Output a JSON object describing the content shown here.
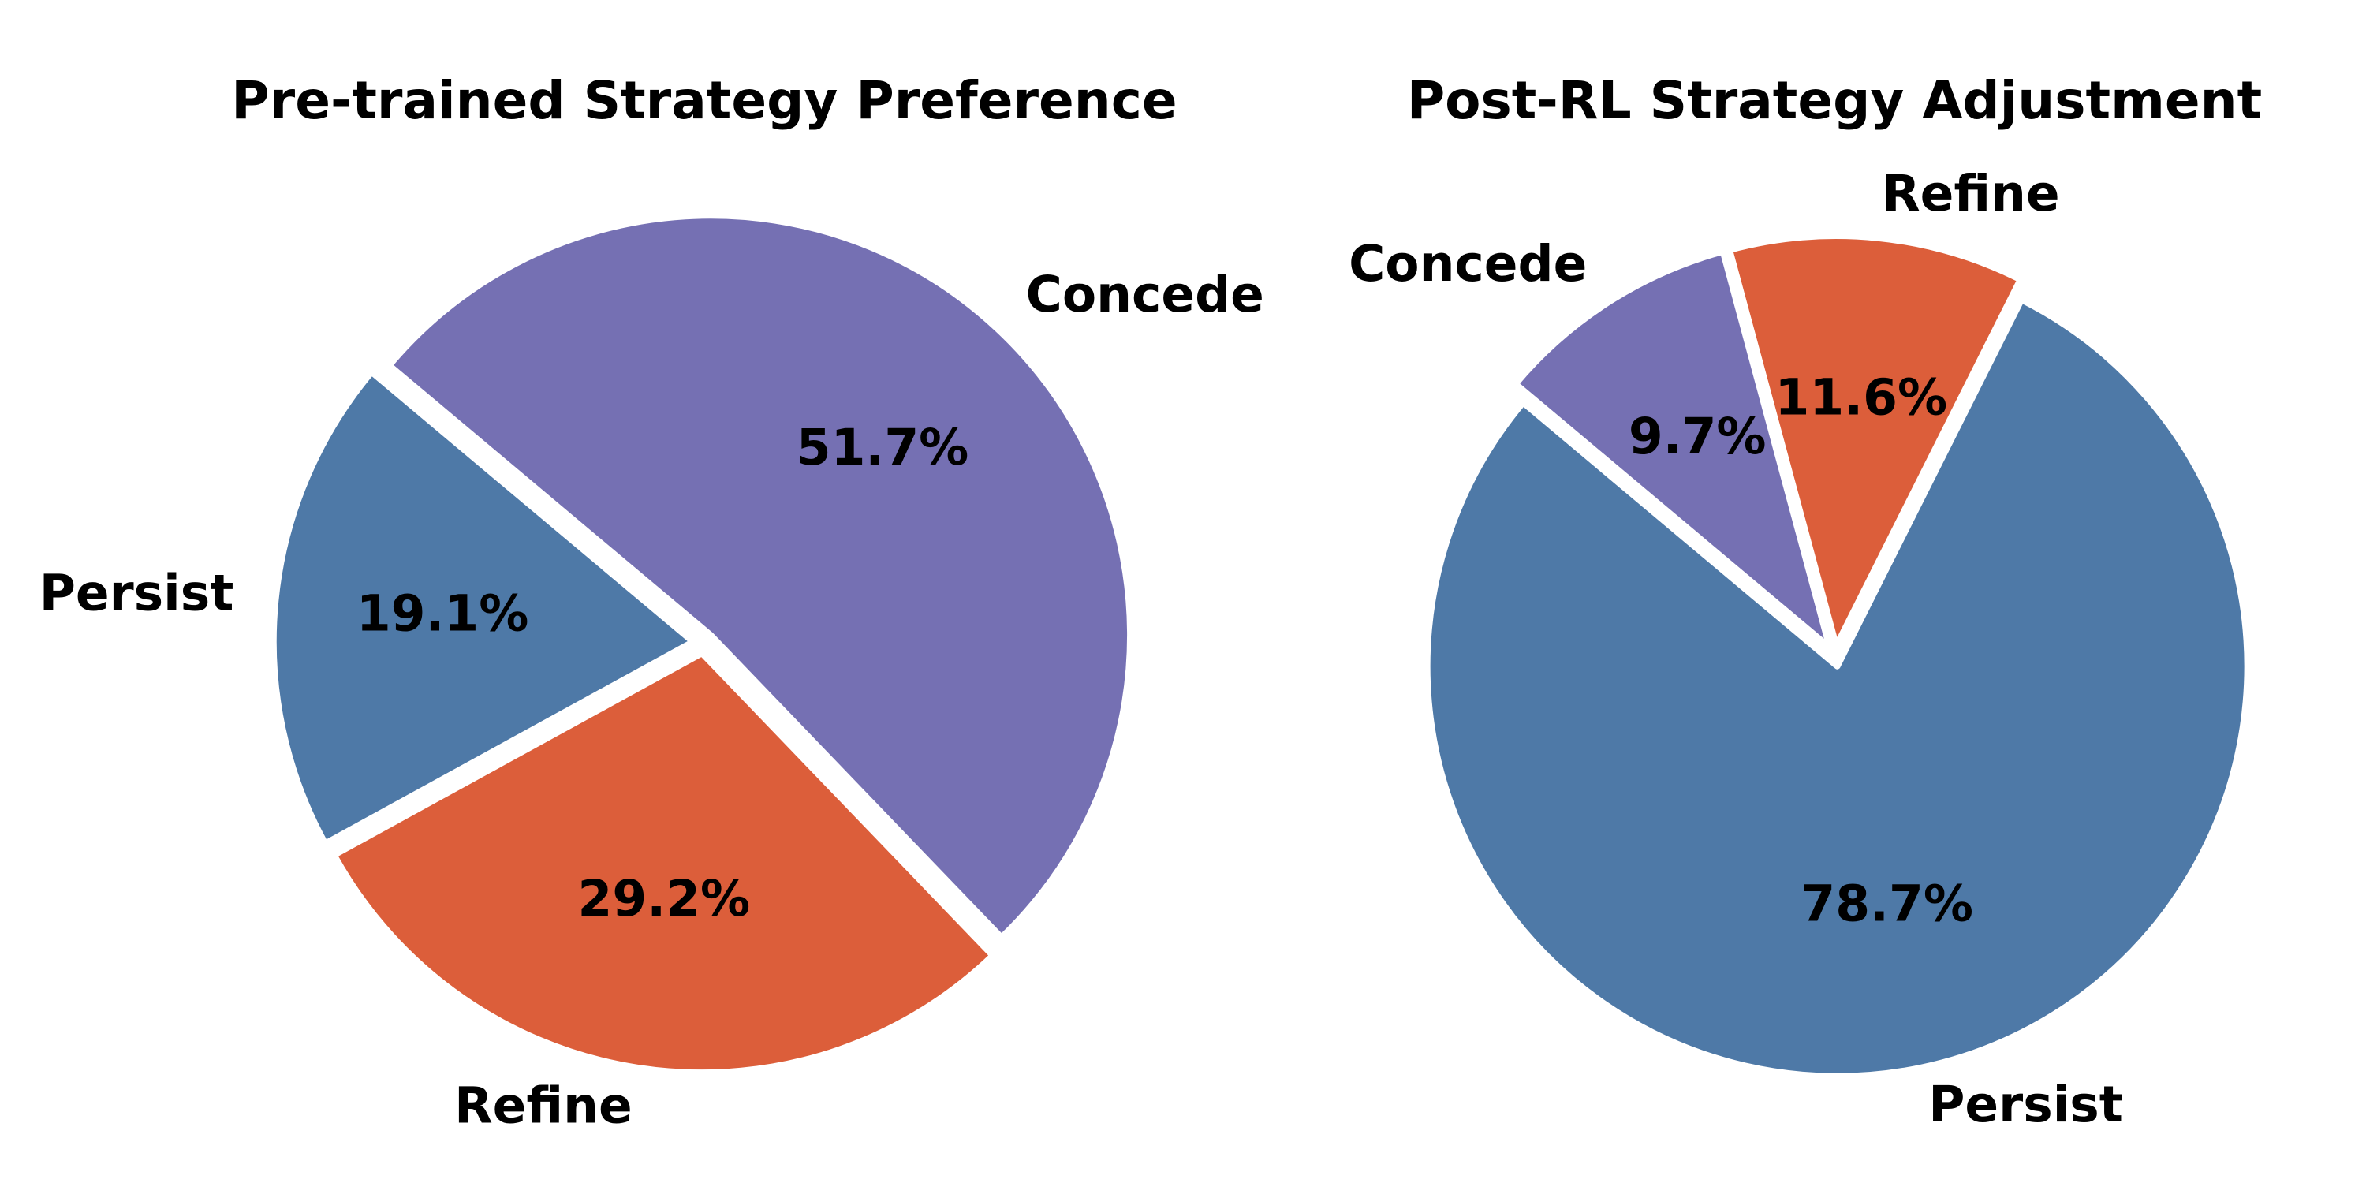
{
  "chart_data": [
    {
      "type": "pie",
      "title": "Pre-trained Strategy Preference",
      "categories": [
        "Persist",
        "Refine",
        "Concede"
      ],
      "values": [
        19.1,
        29.2,
        51.7
      ],
      "value_labels": [
        "19.1%",
        "29.2%",
        "51.7%"
      ],
      "colors": [
        "#4e79a7",
        "#dc5e3a",
        "#7570b3"
      ]
    },
    {
      "type": "pie",
      "title": "Post-RL Strategy Adjustment",
      "categories": [
        "Persist",
        "Refine",
        "Concede"
      ],
      "values": [
        78.7,
        11.6,
        9.7
      ],
      "value_labels": [
        "78.7%",
        "11.6%",
        "9.7%"
      ],
      "colors": [
        "#4e79a7",
        "#dc5e3a",
        "#7570b3"
      ]
    }
  ]
}
